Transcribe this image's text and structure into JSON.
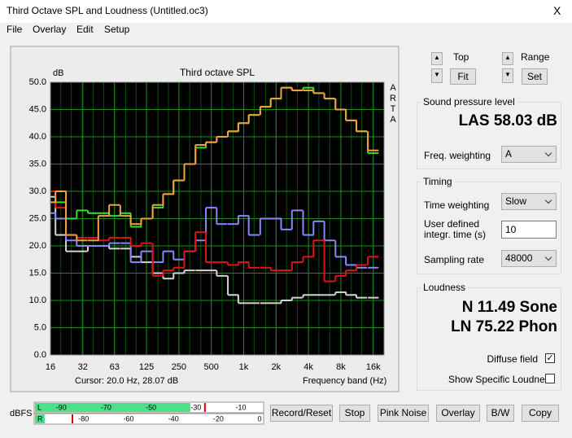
{
  "window": {
    "title": "Third Octave SPL and Loudness (Untitled.oc3)",
    "close": "X"
  },
  "menu": [
    "File",
    "Overlay",
    "Edit",
    "Setup"
  ],
  "chart_data": {
    "type": "line",
    "title": "Third octave SPL",
    "y_label": "dB",
    "x_label": "Frequency band (Hz)",
    "brand": [
      "A",
      "R",
      "T",
      "A"
    ],
    "cursor": "Cursor:   20.0 Hz, 28.07 dB",
    "x": [
      16,
      20,
      25,
      31.5,
      40,
      50,
      63,
      80,
      100,
      125,
      160,
      200,
      250,
      315,
      400,
      500,
      630,
      800,
      1000,
      1250,
      1600,
      2000,
      2500,
      3150,
      4000,
      5000,
      6300,
      8000,
      10000,
      12500,
      16000
    ],
    "series": [
      {
        "color": "#d4d4d4",
        "values": [
          29,
          22,
          19,
          19,
          20,
          20,
          19.5,
          19.5,
          18,
          17,
          15,
          14,
          15,
          15.5,
          15.5,
          15.5,
          14.5,
          11,
          9.5,
          9.5,
          9.5,
          9.5,
          10,
          10.5,
          11,
          11,
          11,
          11.5,
          11,
          10.5,
          10.5
        ]
      },
      {
        "color": "#8888ff",
        "values": [
          26,
          25,
          21,
          20,
          20,
          20,
          20.5,
          20.5,
          17,
          19,
          17,
          19,
          17.5,
          19,
          21,
          27,
          24,
          24,
          25.5,
          22,
          25,
          25,
          23,
          26.5,
          22,
          24.5,
          21,
          18,
          16.5,
          16,
          16
        ]
      },
      {
        "color": "#e01414",
        "values": [
          30,
          27,
          22,
          21.5,
          21.5,
          21,
          21.5,
          21.5,
          20,
          20.5,
          14.5,
          15.5,
          16,
          19,
          22.5,
          17,
          17,
          16.5,
          17,
          16,
          16,
          15.5,
          15.5,
          17,
          18,
          21,
          13.5,
          14.5,
          15.5,
          16.5,
          18
        ]
      },
      {
        "color": "#33dd33",
        "values": [
          28,
          28,
          25,
          26.5,
          26,
          26,
          25.5,
          26,
          23.5,
          25,
          27,
          29.5,
          32,
          35,
          38,
          39,
          40,
          41,
          42.5,
          44,
          45.5,
          47,
          49,
          48.5,
          49,
          48,
          47,
          45,
          43,
          41,
          37
        ]
      },
      {
        "color": "#f5a040",
        "values": [
          28,
          30,
          22,
          21,
          21,
          25.5,
          27.5,
          25.5,
          24,
          25,
          27.5,
          29.5,
          32,
          35,
          38.5,
          39,
          40,
          41,
          42.5,
          44,
          45.5,
          47,
          49,
          48.5,
          48.5,
          48,
          47,
          45,
          43,
          41,
          37.5
        ]
      }
    ],
    "xlim": [
      16,
      20160
    ],
    "ylim": [
      0,
      50
    ],
    "log_x": true,
    "grid": true,
    "xticks": [
      16,
      32,
      63,
      125,
      250,
      500,
      {
        "value": 1000,
        "label": "1k"
      },
      {
        "value": 2000,
        "label": "2k"
      },
      {
        "value": 4000,
        "label": "4k"
      },
      {
        "value": 8000,
        "label": "8k"
      },
      {
        "value": 16000,
        "label": "16k"
      }
    ],
    "yticks": [
      {
        "value": 0,
        "label": "0.0"
      },
      {
        "value": 5,
        "label": "5.0"
      },
      {
        "value": 10,
        "label": "10.0"
      },
      {
        "value": 15,
        "label": "15.0"
      },
      {
        "value": 20,
        "label": "20.0"
      },
      {
        "value": 25,
        "label": "25.0"
      },
      {
        "value": 30,
        "label": "30.0"
      },
      {
        "value": 35,
        "label": "35.0"
      },
      {
        "value": 40,
        "label": "40.0"
      },
      {
        "value": 45,
        "label": "45.0"
      },
      {
        "value": 50,
        "label": "50.0"
      }
    ]
  },
  "controls": {
    "top": "Top",
    "fit": "Fit",
    "range": "Range",
    "set": "Set"
  },
  "spl": {
    "title": "Sound pressure level",
    "value": "LAS 58.03 dB",
    "freq_weighting_label": "Freq. weighting",
    "freq_weighting": "A"
  },
  "timing": {
    "title": "Timing",
    "time_weighting_label": "Time weighting",
    "time_weighting": "Slow",
    "integr_label": [
      "User defined",
      "integr. time (s)"
    ],
    "integr_time": "10",
    "sampling_rate_label": "Sampling rate",
    "sampling_rate": "48000"
  },
  "loudness": {
    "title": "Loudness",
    "n": "N 11.49 Sone",
    "ln": "LN 75.22 Phon",
    "diffuse_field_label": "Diffuse field",
    "diffuse_field": true,
    "show_specific_label": "Show Specific Loudness",
    "show_specific": false
  },
  "meter": {
    "label": "dBFS",
    "left_channel": "L",
    "right_channel": "R",
    "left_ticks": [
      -90,
      -70,
      -50,
      -30,
      -10
    ],
    "right_ticks": [
      -80,
      -60,
      -40,
      -20,
      0
    ],
    "left_level": -32.5,
    "left_peak": -26,
    "right_peak": -85
  },
  "buttons": [
    "Record/Reset",
    "Stop",
    "Pink Noise",
    "Overlay",
    "B/W",
    "Copy"
  ]
}
